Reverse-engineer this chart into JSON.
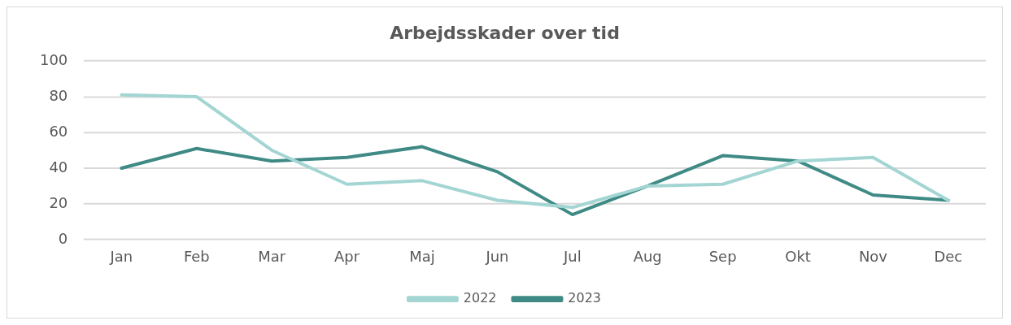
{
  "chart_data": {
    "type": "line",
    "title": "Arbejdsskader over tid",
    "categories": [
      "Jan",
      "Feb",
      "Mar",
      "Apr",
      "Maj",
      "Jun",
      "Jul",
      "Aug",
      "Sep",
      "Okt",
      "Nov",
      "Dec"
    ],
    "series": [
      {
        "name": "2022",
        "color": "#a3d5d3",
        "values": [
          81,
          80,
          50,
          31,
          33,
          22,
          18,
          30,
          31,
          44,
          46,
          22
        ]
      },
      {
        "name": "2023",
        "color": "#3f8a85",
        "values": [
          40,
          51,
          44,
          46,
          52,
          38,
          14,
          30,
          47,
          44,
          25,
          22
        ]
      }
    ],
    "ylim": [
      0,
      100
    ],
    "yticks": [
      0,
      20,
      40,
      60,
      80,
      100
    ],
    "grid": "y",
    "legend": "bottom",
    "marker": "none",
    "line_style": "solid"
  }
}
